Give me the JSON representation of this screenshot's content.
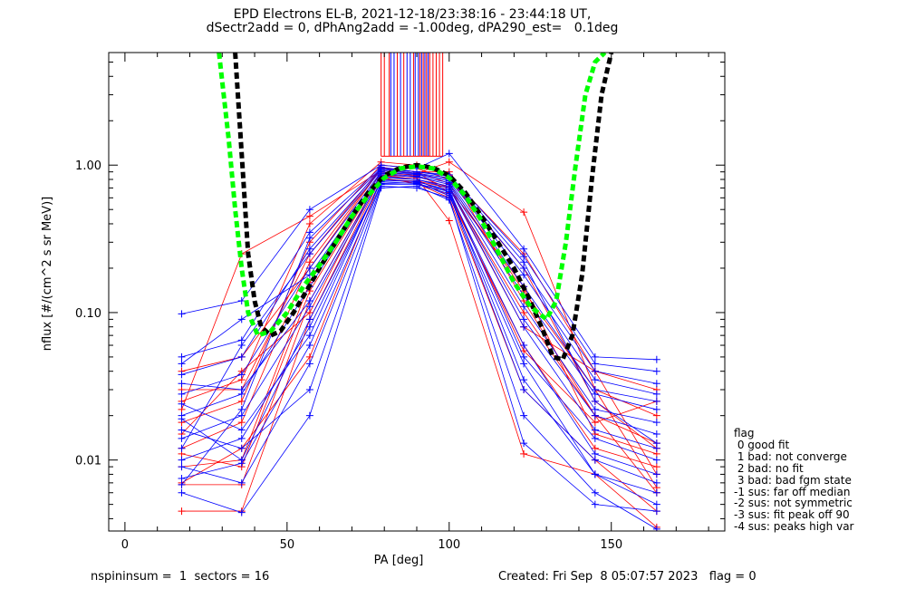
{
  "title_line1": "EPD Electrons EL-B, 2021-12-18/23:38:16 - 23:44:18 UT,",
  "title_line2": "dSectr2add = 0, dPhAng2add = -1.00deg, dPA290_est=   0.1deg",
  "footer_left": "nspininsum =  1  sectors = 16",
  "footer_right": "Created: Fri Sep  8 05:07:57 2023   flag = 0",
  "legend": {
    "title": "flag",
    "items": [
      " 0 good fit",
      " 1 bad: not converge",
      " 2 bad: no fit",
      " 3 bad: bad fgm state",
      "-1 sus: far off median",
      "-2 sus: not symmetric",
      "-3 sus: fit peak off 90",
      "-4 sus: peaks high var"
    ]
  },
  "colors": {
    "series_red": "#ff0000",
    "series_blue": "#0000ff",
    "fit_black": "#000000",
    "fit_green": "#00ff00"
  },
  "chart_data": {
    "type": "scatter",
    "xlabel": "PA [deg]",
    "ylabel": "nflux [#/(cm^2 s sr MeV)]",
    "xlim": [
      -5,
      185
    ],
    "ylim": [
      0.0033,
      5.8
    ],
    "ylog": true,
    "xticks": [
      0,
      50,
      100,
      150
    ],
    "yticks": [
      0.01,
      0.1,
      1.0
    ],
    "ytick_labels": [
      "0.01",
      "0.10",
      "1.00"
    ],
    "pa_bins": [
      17.5,
      36,
      57,
      79,
      90,
      100,
      123,
      145,
      164
    ],
    "series": [
      {
        "color": "red",
        "values": [
          0.0045,
          0.0045,
          0.09,
          0.82,
          0.75,
          0.6,
          0.03,
          0.01,
          0.0045
        ]
      },
      {
        "color": "red",
        "values": [
          0.0068,
          0.0068,
          0.12,
          0.85,
          0.8,
          0.62,
          0.06,
          0.012,
          0.009
        ]
      },
      {
        "color": "red",
        "values": [
          0.009,
          0.01,
          0.16,
          0.9,
          0.85,
          0.7,
          0.1,
          0.02,
          0.013
        ]
      },
      {
        "color": "red",
        "values": [
          0.012,
          0.018,
          0.22,
          0.95,
          0.9,
          0.75,
          0.14,
          0.03,
          0.02
        ]
      },
      {
        "color": "red",
        "values": [
          0.018,
          0.025,
          0.3,
          1.0,
          0.95,
          0.8,
          0.2,
          0.025,
          0.012
        ]
      },
      {
        "color": "red",
        "values": [
          0.025,
          0.035,
          0.4,
          1.05,
          1.0,
          0.85,
          0.25,
          0.04,
          0.03
        ]
      },
      {
        "color": "red",
        "values": [
          0.04,
          0.05,
          0.2,
          0.95,
          0.9,
          0.9,
          0.12,
          0.02,
          0.006
        ]
      },
      {
        "color": "red",
        "values": [
          0.015,
          0.04,
          0.1,
          0.88,
          0.82,
          0.42,
          0.011,
          0.008,
          0.0035
        ]
      },
      {
        "color": "red",
        "values": [
          0.007,
          0.012,
          0.05,
          0.8,
          0.78,
          0.7,
          0.15,
          0.015,
          0.011
        ]
      },
      {
        "color": "red",
        "values": [
          0.022,
          0.25,
          0.45,
          0.92,
          0.88,
          1.05,
          0.48,
          0.03,
          0.0065
        ]
      },
      {
        "color": "red",
        "values": [
          0.03,
          0.03,
          0.25,
          0.96,
          0.9,
          0.65,
          0.055,
          0.018,
          0.025
        ]
      },
      {
        "color": "red",
        "values": [
          0.011,
          0.009,
          0.14,
          0.86,
          0.8,
          0.72,
          0.08,
          0.04,
          0.008
        ]
      },
      {
        "color": "blue",
        "values": [
          0.098,
          0.12,
          0.5,
          1.0,
          0.95,
          1.2,
          0.27,
          0.05,
          0.048
        ]
      },
      {
        "color": "blue",
        "values": [
          0.006,
          0.0044,
          0.02,
          0.7,
          0.72,
          0.58,
          0.02,
          0.006,
          0.0034
        ]
      },
      {
        "color": "blue",
        "values": [
          0.0075,
          0.0095,
          0.06,
          0.75,
          0.76,
          0.62,
          0.045,
          0.008,
          0.005
        ]
      },
      {
        "color": "blue",
        "values": [
          0.01,
          0.014,
          0.08,
          0.78,
          0.78,
          0.66,
          0.06,
          0.011,
          0.008
        ]
      },
      {
        "color": "blue",
        "values": [
          0.014,
          0.02,
          0.11,
          0.82,
          0.8,
          0.7,
          0.08,
          0.016,
          0.012
        ]
      },
      {
        "color": "blue",
        "values": [
          0.02,
          0.028,
          0.15,
          0.86,
          0.83,
          0.74,
          0.11,
          0.022,
          0.018
        ]
      },
      {
        "color": "blue",
        "values": [
          0.028,
          0.038,
          0.2,
          0.9,
          0.86,
          0.78,
          0.15,
          0.03,
          0.025
        ]
      },
      {
        "color": "blue",
        "values": [
          0.038,
          0.05,
          0.27,
          0.94,
          0.88,
          0.82,
          0.2,
          0.04,
          0.033
        ]
      },
      {
        "color": "blue",
        "values": [
          0.05,
          0.065,
          0.35,
          0.97,
          0.9,
          0.86,
          0.24,
          0.045,
          0.04
        ]
      },
      {
        "color": "blue",
        "values": [
          0.016,
          0.012,
          0.03,
          0.72,
          0.7,
          0.6,
          0.013,
          0.005,
          0.0045
        ]
      },
      {
        "color": "blue",
        "values": [
          0.009,
          0.007,
          0.045,
          0.74,
          0.74,
          0.64,
          0.03,
          0.01,
          0.007
        ]
      },
      {
        "color": "blue",
        "values": [
          0.024,
          0.016,
          0.07,
          0.8,
          0.77,
          0.68,
          0.05,
          0.014,
          0.01
        ]
      },
      {
        "color": "blue",
        "values": [
          0.033,
          0.03,
          0.12,
          0.84,
          0.8,
          0.72,
          0.09,
          0.02,
          0.015
        ]
      },
      {
        "color": "blue",
        "values": [
          0.045,
          0.09,
          0.18,
          0.88,
          0.84,
          0.76,
          0.13,
          0.028,
          0.022
        ]
      },
      {
        "color": "blue",
        "values": [
          0.012,
          0.06,
          0.25,
          0.92,
          0.87,
          0.8,
          0.18,
          0.035,
          0.028
        ]
      },
      {
        "color": "blue",
        "values": [
          0.0068,
          0.022,
          0.32,
          0.95,
          0.9,
          0.84,
          0.22,
          0.025,
          0.013
        ]
      },
      {
        "color": "blue",
        "values": [
          0.019,
          0.01,
          0.09,
          0.77,
          0.75,
          0.66,
          0.035,
          0.008,
          0.006
        ]
      }
    ],
    "fit_curves": [
      {
        "color": "black",
        "style": "dashed",
        "x": [
          34,
          36,
          38,
          40,
          42,
          45,
          48,
          52,
          56,
          60,
          65,
          70,
          75,
          80,
          85,
          90,
          95,
          100,
          105,
          110,
          115,
          120,
          125,
          129,
          132,
          135,
          138,
          141,
          144,
          147,
          150
        ],
        "y": [
          5.8,
          1.2,
          0.25,
          0.12,
          0.08,
          0.07,
          0.075,
          0.1,
          0.14,
          0.2,
          0.3,
          0.45,
          0.65,
          0.85,
          0.96,
          1.0,
          0.96,
          0.85,
          0.65,
          0.45,
          0.3,
          0.2,
          0.12,
          0.075,
          0.05,
          0.048,
          0.07,
          0.18,
          0.8,
          3.0,
          5.8
        ]
      },
      {
        "color": "green",
        "style": "dashed",
        "x": [
          29,
          32,
          34,
          36,
          38,
          41,
          45,
          50,
          55,
          60,
          65,
          70,
          75,
          80,
          85,
          90,
          95,
          100,
          105,
          110,
          115,
          120,
          125,
          130,
          133,
          136,
          139,
          142,
          145,
          148
        ],
        "y": [
          5.8,
          1.5,
          0.5,
          0.2,
          0.1,
          0.07,
          0.075,
          0.1,
          0.15,
          0.21,
          0.3,
          0.45,
          0.62,
          0.82,
          0.95,
          0.98,
          0.95,
          0.82,
          0.62,
          0.42,
          0.26,
          0.16,
          0.11,
          0.09,
          0.12,
          0.3,
          1.0,
          3.0,
          5.0,
          5.8
        ]
      }
    ],
    "vertical_lines": {
      "red": [
        79,
        80,
        81.5,
        84,
        86,
        89,
        91,
        92,
        93,
        94,
        95,
        96,
        97,
        98
      ],
      "blue": [
        82,
        83,
        85,
        87,
        88,
        89.5,
        90.5,
        91.5,
        92.5,
        93.5
      ]
    }
  }
}
